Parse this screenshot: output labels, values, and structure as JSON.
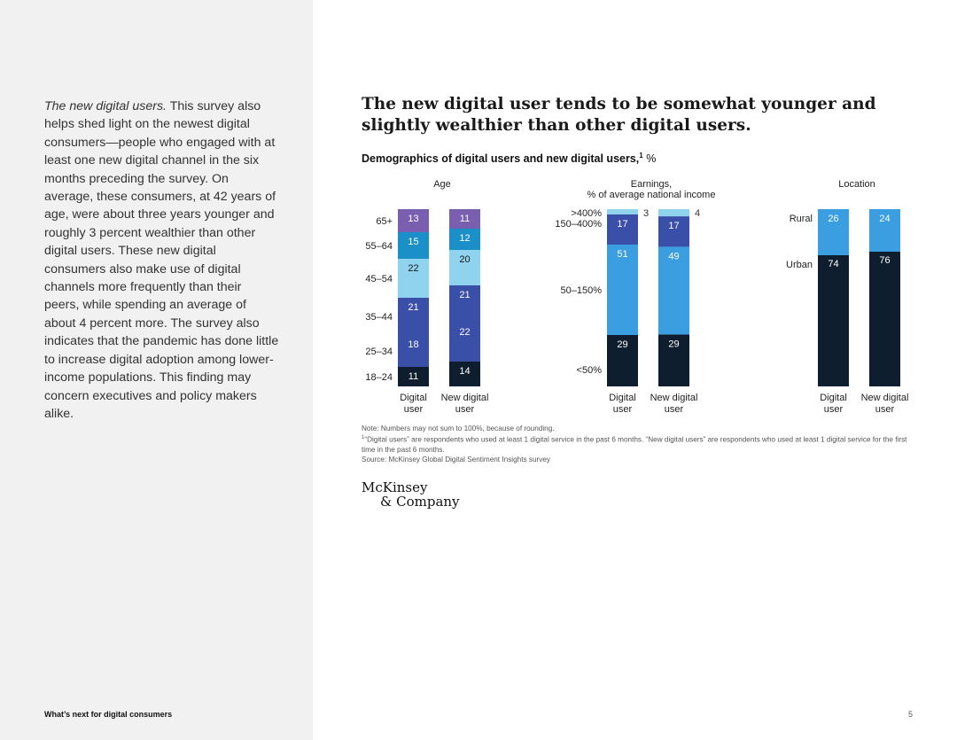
{
  "sidebar": {
    "lead_italic": "The new digital users.",
    "body": " This survey also helps shed light on the newest digital consumers—people who engaged with at least one new digital channel in the six months preceding the survey. On average, these consumers, at 42 years of age, were about three years younger and roughly 3 percent wealthier than other digital users. These new digital consumers also make use of digital channels more frequently than their peers, while spending an average of about 4 percent more. The survey also indicates that the pandemic has done little to increase digital adoption among lower-income populations. This finding may concern executives and policy makers alike."
  },
  "footer": {
    "title": "What’s next for digital consumers",
    "page": "5"
  },
  "headline": "The new digital user tends to be somewhat younger and slightly wealthier than other digital users.",
  "chart_header": {
    "title": "Demographics of digital users and new digital users,",
    "footnote_mark": "1",
    "unit": " %"
  },
  "colors": {
    "dark_navy": "#0f1e2e",
    "blue": "#3a9ee0",
    "light_blue": "#8fd3ee",
    "indigo": "#3a4fa8",
    "teal": "#1a8fc8",
    "purple": "#7a5fb0",
    "violet": "#5a4cb0"
  },
  "chart_data": [
    {
      "type": "bar",
      "stacked": true,
      "title": "Age",
      "subtitle": "",
      "categories": [
        "Digital user",
        "New digital user"
      ],
      "series": [
        {
          "name": "18–24",
          "values": [
            11,
            14
          ],
          "color": "#0f1e2e"
        },
        {
          "name": "25–34",
          "values": [
            18,
            22
          ],
          "color": "#3a4fa8"
        },
        {
          "name": "35–44",
          "values": [
            21,
            21
          ],
          "color": "#3a4fa8"
        },
        {
          "name": "45–54",
          "values": [
            22,
            20
          ],
          "color": "#8fd3ee"
        },
        {
          "name": "55–64",
          "values": [
            15,
            12
          ],
          "color": "#1a8fc8"
        },
        {
          "name": "65+",
          "values": [
            13,
            11
          ],
          "color": "#7a5fb0"
        }
      ]
    },
    {
      "type": "bar",
      "stacked": true,
      "title": "Earnings,",
      "subtitle": "% of average national income",
      "categories": [
        "Digital user",
        "New digital user"
      ],
      "series": [
        {
          "name": "<50%",
          "values": [
            29,
            29
          ],
          "color": "#0f1e2e"
        },
        {
          "name": "50–150%",
          "values": [
            51,
            49
          ],
          "color": "#3a9ee0"
        },
        {
          "name": "150–400%",
          "values": [
            17,
            17
          ],
          "color": "#3a4fa8"
        },
        {
          "name": ">400%",
          "values": [
            3,
            4
          ],
          "color": "#8fd3ee"
        }
      ]
    },
    {
      "type": "bar",
      "stacked": true,
      "title": "Location",
      "subtitle": "",
      "categories": [
        "Digital user",
        "New digital user"
      ],
      "series": [
        {
          "name": "Urban",
          "values": [
            74,
            76
          ],
          "color": "#0f1e2e"
        },
        {
          "name": "Rural",
          "values": [
            26,
            24
          ],
          "color": "#3a9ee0"
        }
      ]
    }
  ],
  "notes": {
    "note": "Note: Numbers may not sum to 100%, because of rounding.",
    "footnote_mark": "1",
    "footnote": "“Digital users” are respondents who used at least 1 digital service in the past 6 months. “New digital users” are respondents who used at least 1 digital service for the first time in the past 6 months.",
    "source": "Source: McKinsey Global Digital Sentiment Insights survey"
  },
  "logo": {
    "line1": "McKinsey",
    "line2": "& Company"
  }
}
